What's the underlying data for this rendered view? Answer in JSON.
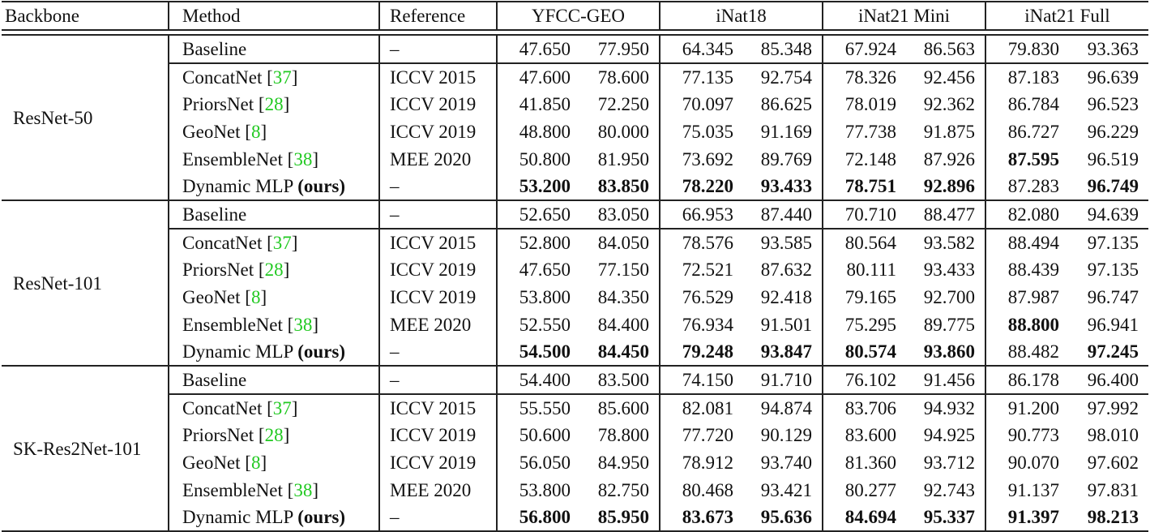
{
  "table": {
    "headers": {
      "backbone": "Backbone",
      "method": "Method",
      "reference": "Reference",
      "datasets": [
        "YFCC-GEO",
        "iNat18",
        "iNat21 Mini",
        "iNat21 Full"
      ]
    },
    "colors": {
      "citation": "#22c922",
      "text": "#111111",
      "rule": "#222222"
    },
    "sections": [
      {
        "backbone": "ResNet-50",
        "rows": [
          {
            "method": "Baseline",
            "cite": "",
            "ours": "",
            "reference": "–",
            "values": [
              "47.650",
              "77.950",
              "64.345",
              "85.348",
              "67.924",
              "86.563",
              "79.830",
              "93.363"
            ],
            "bold": [
              false,
              false,
              false,
              false,
              false,
              false,
              false,
              false
            ]
          },
          {
            "method": "ConcatNet ",
            "cite": "37",
            "ours": "",
            "reference": "ICCV 2015",
            "values": [
              "47.600",
              "78.600",
              "77.135",
              "92.754",
              "78.326",
              "92.456",
              "87.183",
              "96.639"
            ],
            "bold": [
              false,
              false,
              false,
              false,
              false,
              false,
              false,
              false
            ]
          },
          {
            "method": "PriorsNet ",
            "cite": "28",
            "ours": "",
            "reference": "ICCV 2019",
            "values": [
              "41.850",
              "72.250",
              "70.097",
              "86.625",
              "78.019",
              "92.362",
              "86.784",
              "96.523"
            ],
            "bold": [
              false,
              false,
              false,
              false,
              false,
              false,
              false,
              false
            ]
          },
          {
            "method": "GeoNet ",
            "cite": "8",
            "ours": "",
            "reference": "ICCV 2019",
            "values": [
              "48.800",
              "80.000",
              "75.035",
              "91.169",
              "77.738",
              "91.875",
              "86.727",
              "96.229"
            ],
            "bold": [
              false,
              false,
              false,
              false,
              false,
              false,
              false,
              false
            ]
          },
          {
            "method": "EnsembleNet ",
            "cite": "38",
            "ours": "",
            "reference": "MEE 2020",
            "values": [
              "50.800",
              "81.950",
              "73.692",
              "89.769",
              "72.148",
              "87.926",
              "87.595",
              "96.519"
            ],
            "bold": [
              false,
              false,
              false,
              false,
              false,
              false,
              true,
              false
            ]
          },
          {
            "method": "Dynamic MLP ",
            "cite": "",
            "ours": "(ours)",
            "reference": "–",
            "values": [
              "53.200",
              "83.850",
              "78.220",
              "93.433",
              "78.751",
              "92.896",
              "87.283",
              "96.749"
            ],
            "bold": [
              true,
              true,
              true,
              true,
              true,
              true,
              false,
              true
            ]
          }
        ]
      },
      {
        "backbone": "ResNet-101",
        "rows": [
          {
            "method": "Baseline",
            "cite": "",
            "ours": "",
            "reference": "–",
            "values": [
              "52.650",
              "83.050",
              "66.953",
              "87.440",
              "70.710",
              "88.477",
              "82.080",
              "94.639"
            ],
            "bold": [
              false,
              false,
              false,
              false,
              false,
              false,
              false,
              false
            ]
          },
          {
            "method": "ConcatNet ",
            "cite": "37",
            "ours": "",
            "reference": "ICCV 2015",
            "values": [
              "52.800",
              "84.050",
              "78.576",
              "93.585",
              "80.564",
              "93.582",
              "88.494",
              "97.135"
            ],
            "bold": [
              false,
              false,
              false,
              false,
              false,
              false,
              false,
              false
            ]
          },
          {
            "method": "PriorsNet ",
            "cite": "28",
            "ours": "",
            "reference": "ICCV 2019",
            "values": [
              "47.650",
              "77.150",
              "72.521",
              "87.632",
              "80.111",
              "93.433",
              "88.439",
              "97.135"
            ],
            "bold": [
              false,
              false,
              false,
              false,
              false,
              false,
              false,
              false
            ]
          },
          {
            "method": "GeoNet ",
            "cite": "8",
            "ours": "",
            "reference": "ICCV 2019",
            "values": [
              "53.800",
              "84.350",
              "76.529",
              "92.418",
              "79.165",
              "92.700",
              "87.987",
              "96.747"
            ],
            "bold": [
              false,
              false,
              false,
              false,
              false,
              false,
              false,
              false
            ]
          },
          {
            "method": "EnsembleNet ",
            "cite": "38",
            "ours": "",
            "reference": "MEE 2020",
            "values": [
              "52.550",
              "84.400",
              "76.934",
              "91.501",
              "75.295",
              "89.775",
              "88.800",
              "96.941"
            ],
            "bold": [
              false,
              false,
              false,
              false,
              false,
              false,
              true,
              false
            ]
          },
          {
            "method": "Dynamic MLP ",
            "cite": "",
            "ours": "(ours)",
            "reference": "–",
            "values": [
              "54.500",
              "84.450",
              "79.248",
              "93.847",
              "80.574",
              "93.860",
              "88.482",
              "97.245"
            ],
            "bold": [
              true,
              true,
              true,
              true,
              true,
              true,
              false,
              true
            ]
          }
        ]
      },
      {
        "backbone": "SK-Res2Net-101",
        "rows": [
          {
            "method": "Baseline",
            "cite": "",
            "ours": "",
            "reference": "–",
            "values": [
              "54.400",
              "83.500",
              "74.150",
              "91.710",
              "76.102",
              "91.456",
              "86.178",
              "96.400"
            ],
            "bold": [
              false,
              false,
              false,
              false,
              false,
              false,
              false,
              false
            ]
          },
          {
            "method": "ConcatNet ",
            "cite": "37",
            "ours": "",
            "reference": "ICCV 2015",
            "values": [
              "55.550",
              "85.600",
              "82.081",
              "94.874",
              "83.706",
              "94.932",
              "91.200",
              "97.992"
            ],
            "bold": [
              false,
              false,
              false,
              false,
              false,
              false,
              false,
              false
            ]
          },
          {
            "method": "PriorsNet ",
            "cite": "28",
            "ours": "",
            "reference": "ICCV 2019",
            "values": [
              "50.600",
              "78.800",
              "77.720",
              "90.129",
              "83.600",
              "94.925",
              "90.773",
              "98.010"
            ],
            "bold": [
              false,
              false,
              false,
              false,
              false,
              false,
              false,
              false
            ]
          },
          {
            "method": "GeoNet ",
            "cite": "8",
            "ours": "",
            "reference": "ICCV 2019",
            "values": [
              "56.050",
              "84.950",
              "78.912",
              "93.740",
              "81.360",
              "93.712",
              "90.070",
              "97.602"
            ],
            "bold": [
              false,
              false,
              false,
              false,
              false,
              false,
              false,
              false
            ]
          },
          {
            "method": "EnsembleNet ",
            "cite": "38",
            "ours": "",
            "reference": "MEE 2020",
            "values": [
              "53.800",
              "82.750",
              "80.468",
              "93.421",
              "80.277",
              "92.743",
              "91.137",
              "97.831"
            ],
            "bold": [
              false,
              false,
              false,
              false,
              false,
              false,
              false,
              false
            ]
          },
          {
            "method": "Dynamic MLP ",
            "cite": "",
            "ours": "(ours)",
            "reference": "–",
            "values": [
              "56.800",
              "85.950",
              "83.673",
              "95.636",
              "84.694",
              "95.337",
              "91.397",
              "98.213"
            ],
            "bold": [
              true,
              true,
              true,
              true,
              true,
              true,
              true,
              true
            ]
          }
        ]
      }
    ]
  }
}
